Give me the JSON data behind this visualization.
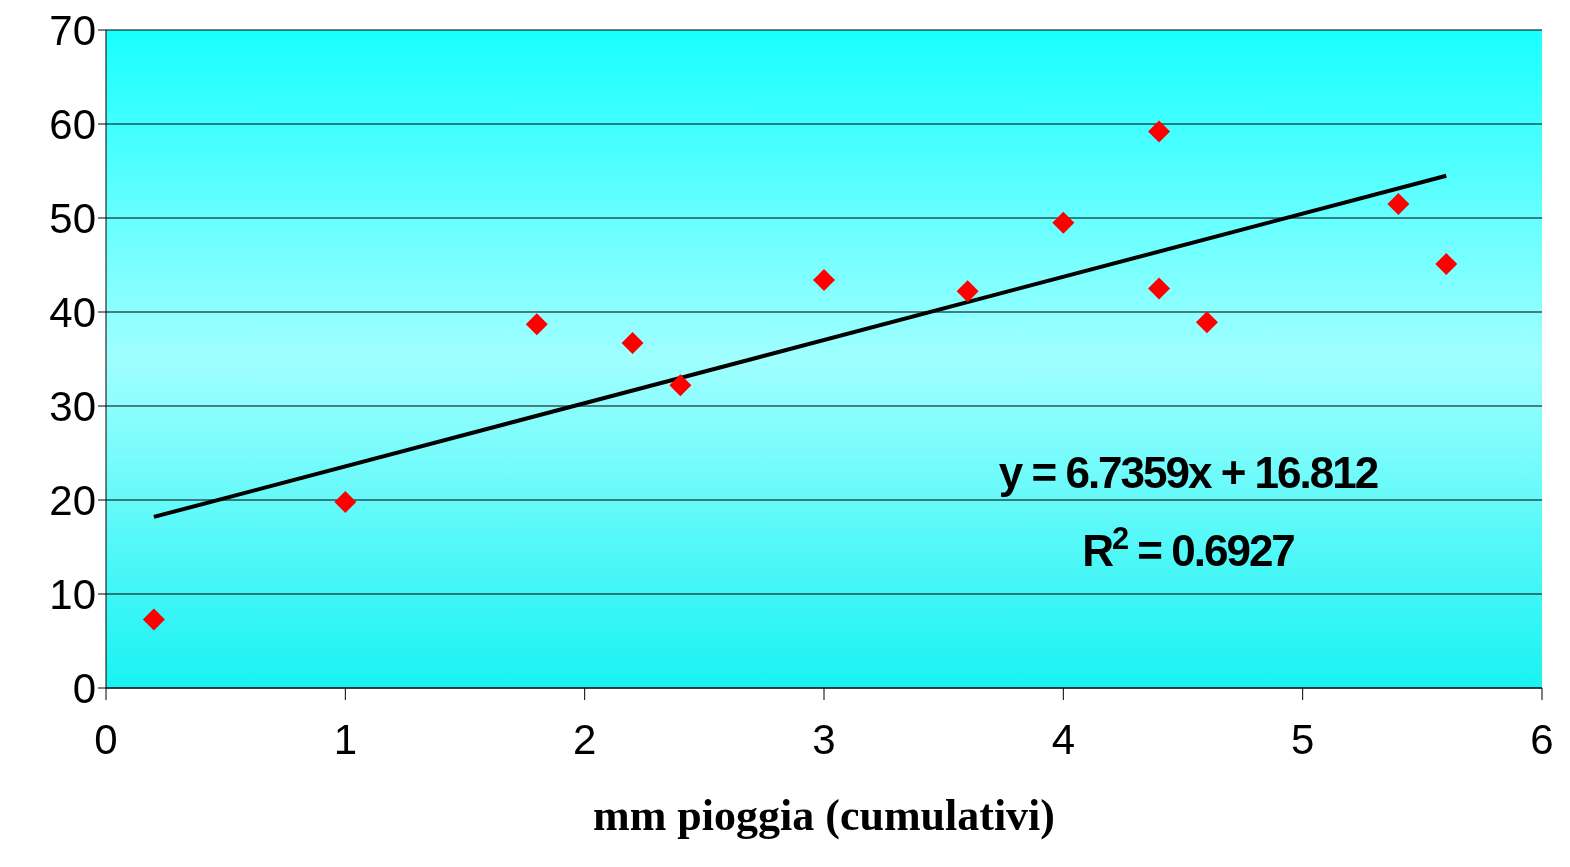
{
  "chart_data": {
    "type": "scatter",
    "xlabel": "mm pioggia (cumulativi)",
    "xlim": [
      0,
      6
    ],
    "xticks": [
      0,
      1,
      2,
      3,
      4,
      5,
      6
    ],
    "ylim": [
      0,
      70
    ],
    "yticks": [
      0,
      10,
      20,
      30,
      40,
      50,
      60,
      70
    ],
    "grid": "y",
    "legend": false,
    "series": [
      {
        "type": "scatter",
        "color": "#ff0000",
        "marker": "diamond",
        "x": [
          0.2,
          1.0,
          1.8,
          2.2,
          2.4,
          3.0,
          3.6,
          4.0,
          4.4,
          4.4,
          4.6,
          5.4,
          5.6
        ],
        "values": [
          7.3,
          19.8,
          38.7,
          36.7,
          32.2,
          43.4,
          42.2,
          49.5,
          59.2,
          42.5,
          38.9,
          51.5,
          45.1
        ]
      },
      {
        "type": "line",
        "color": "#000000",
        "marker": "none",
        "line_style": "solid",
        "x": [
          0.2,
          5.6
        ],
        "values": [
          18.2,
          54.5
        ]
      }
    ],
    "annotations": [
      "y = 6.7359x + 16.812",
      "R$^{2}$ = 0.6927"
    ]
  }
}
